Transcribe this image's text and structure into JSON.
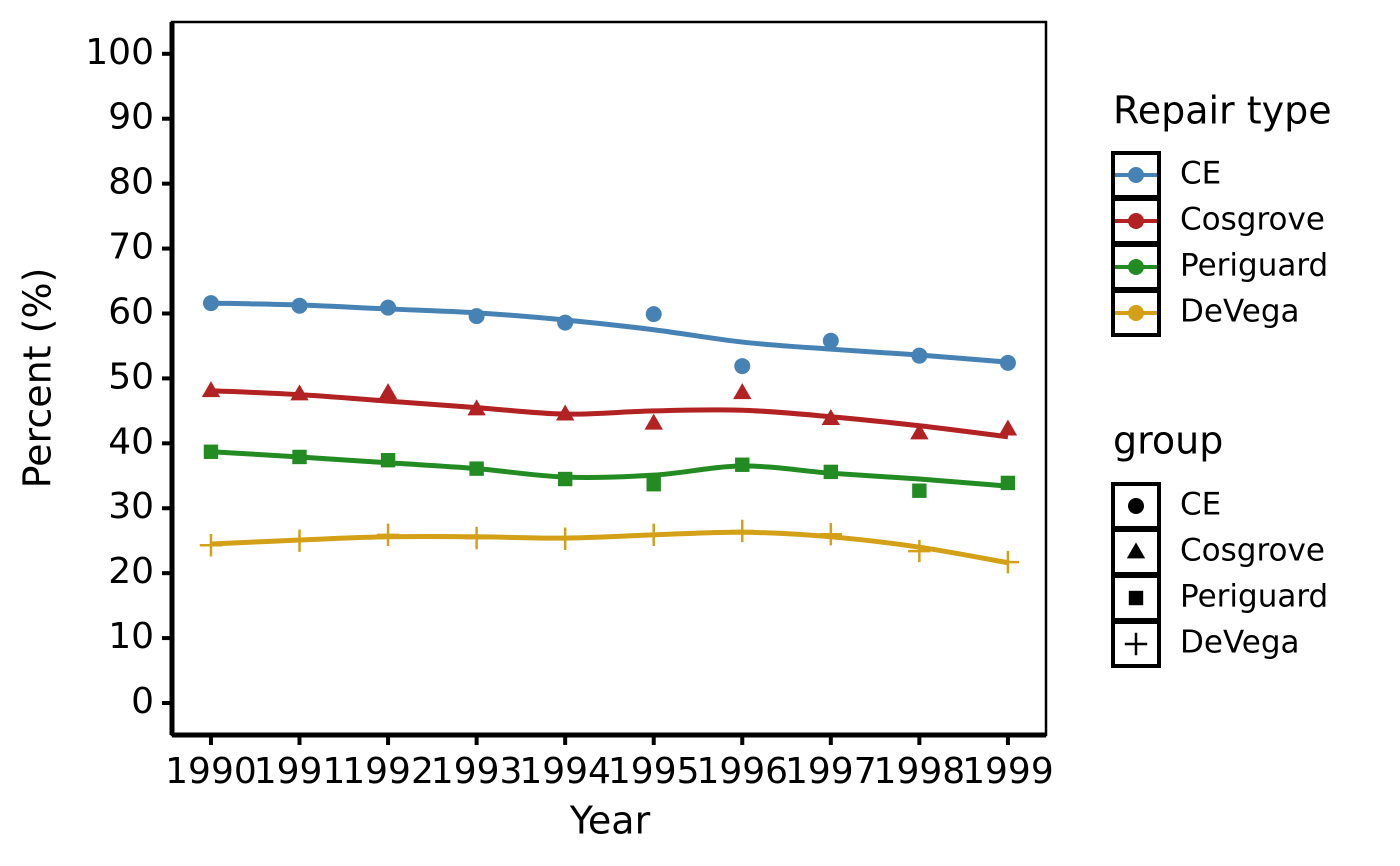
{
  "chart_data": {
    "type": "line",
    "x_label": "Year",
    "y_label": "Percent (%)",
    "x": [
      1990,
      1991,
      1992,
      1993,
      1994,
      1995,
      1996,
      1997,
      1998,
      1999
    ],
    "xlim": [
      1989.56,
      1999.43
    ],
    "xticks": [
      1990,
      1991,
      1992,
      1993,
      1994,
      1995,
      1996,
      1997,
      1998,
      1999
    ],
    "ylim": [
      -4.93,
      104.9
    ],
    "yticks": [
      0,
      10,
      20,
      30,
      40,
      50,
      60,
      70,
      80,
      90,
      100
    ],
    "color_legend_title": "Repair type",
    "shape_legend_title": "group",
    "series": [
      {
        "name": "CE",
        "color": "#4682b4",
        "shape": "circle",
        "values": [
          61.6,
          61.2,
          60.9,
          59.6,
          58.6,
          59.9,
          51.9,
          55.8,
          53.5,
          52.4
        ],
        "smooth": [
          61.6,
          61.3,
          60.7,
          60.1,
          59.0,
          57.5,
          55.6,
          54.5,
          53.6,
          52.5
        ]
      },
      {
        "name": "Cosgrove",
        "color": "#b22222",
        "shape": "triangle",
        "values": [
          48.1,
          47.6,
          47.8,
          45.3,
          44.5,
          43.1,
          47.8,
          43.8,
          41.6,
          42.2
        ],
        "smooth": [
          48.1,
          47.5,
          46.5,
          45.5,
          44.5,
          45.0,
          45.1,
          44.1,
          42.7,
          41.0
        ]
      },
      {
        "name": "Periguard",
        "color": "#228b22",
        "shape": "square",
        "values": [
          38.7,
          37.9,
          37.4,
          36.1,
          34.5,
          33.7,
          36.7,
          35.6,
          32.7,
          33.9
        ],
        "smooth": [
          38.7,
          37.9,
          37.0,
          36.1,
          34.8,
          35.1,
          36.5,
          35.4,
          34.5,
          33.4
        ]
      },
      {
        "name": "DeVega",
        "color": "#d4a017",
        "shape": "plus",
        "values": [
          24.3,
          25.0,
          25.9,
          25.4,
          25.3,
          25.9,
          26.5,
          26.0,
          23.4,
          21.7
        ],
        "smooth": [
          24.5,
          25.1,
          25.6,
          25.6,
          25.4,
          25.9,
          26.3,
          25.6,
          24.0,
          21.6
        ]
      }
    ]
  }
}
